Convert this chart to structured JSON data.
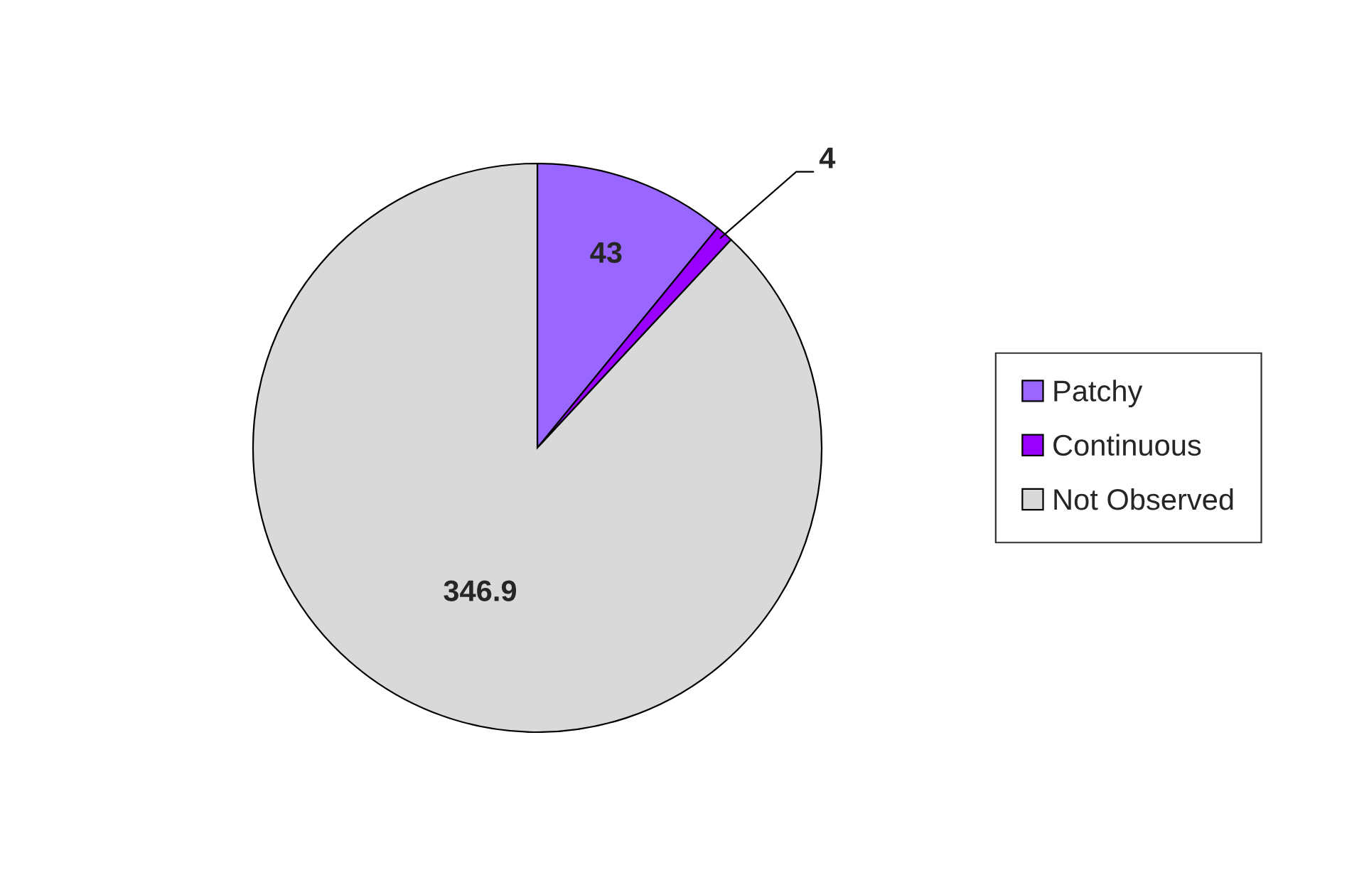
{
  "chart_data": {
    "type": "pie",
    "categories": [
      "Patchy",
      "Continuous",
      "Not Observed"
    ],
    "values": [
      43,
      4,
      346.9
    ],
    "colors": [
      "#9966ff",
      "#9900ff",
      "#d9d9d9"
    ],
    "data_labels": true,
    "legend": "right"
  }
}
